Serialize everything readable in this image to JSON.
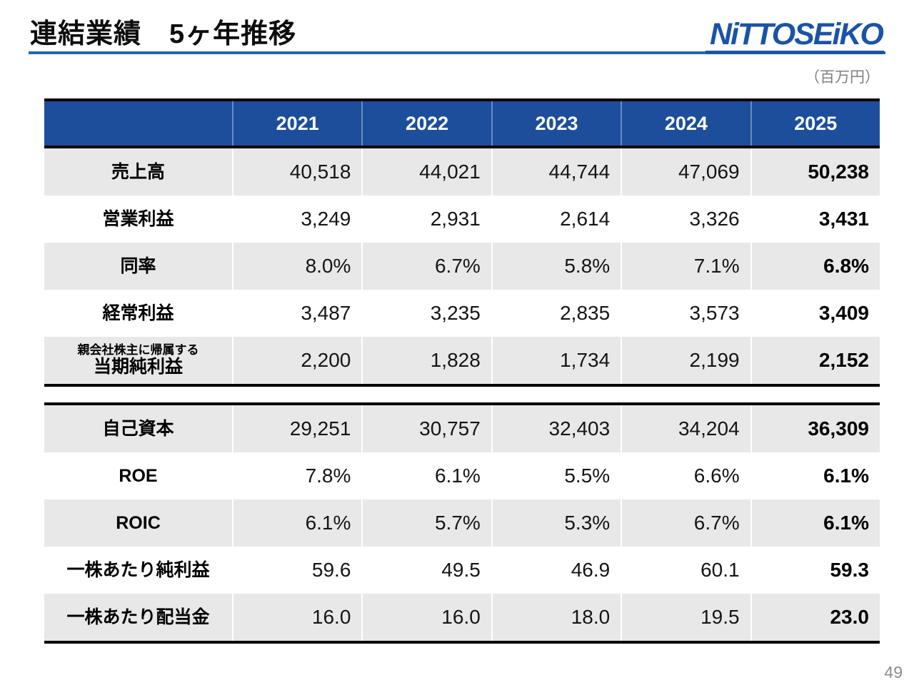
{
  "slide": {
    "title": "連結業績　5ヶ年推移",
    "unit_note": "（百万円）",
    "page_number": "49"
  },
  "logo": {
    "text": "NiTTOSEiKO"
  },
  "colors": {
    "header_blue": "#1C4E9B",
    "logo_blue": "#1B54A5",
    "rule_blue": "#2A66A5",
    "row_gray": "#E8E8E8",
    "muted_text": "#7F7F7F",
    "page_num_gray": "#8C8C8C"
  },
  "table": {
    "years": [
      "2021",
      "2022",
      "2023",
      "2024",
      "2025"
    ],
    "sections": [
      {
        "rows": [
          {
            "label": "売上高",
            "values": [
              "40,518",
              "44,021",
              "44,744",
              "47,069",
              "50,238"
            ]
          },
          {
            "label": "営業利益",
            "values": [
              "3,249",
              "2,931",
              "2,614",
              "3,326",
              "3,431"
            ]
          },
          {
            "label": "同率",
            "values": [
              "8.0%",
              "6.7%",
              "5.8%",
              "7.1%",
              "6.8%"
            ]
          },
          {
            "label": "経常利益",
            "values": [
              "3,487",
              "3,235",
              "2,835",
              "3,573",
              "3,409"
            ]
          },
          {
            "label": "当期純利益",
            "note": "親会社株主に帰属する",
            "values": [
              "2,200",
              "1,828",
              "1,734",
              "2,199",
              "2,152"
            ]
          }
        ]
      },
      {
        "rows": [
          {
            "label": "自己資本",
            "values": [
              "29,251",
              "30,757",
              "32,403",
              "34,204",
              "36,309"
            ]
          },
          {
            "label": "ROE",
            "values": [
              "7.8%",
              "6.1%",
              "5.5%",
              "6.6%",
              "6.1%"
            ]
          },
          {
            "label": "ROIC",
            "values": [
              "6.1%",
              "5.7%",
              "5.3%",
              "6.7%",
              "6.1%"
            ]
          },
          {
            "label": "一株あたり純利益",
            "values": [
              "59.6",
              "49.5",
              "46.9",
              "60.1",
              "59.3"
            ]
          },
          {
            "label": "一株あたり配当金",
            "values": [
              "16.0",
              "16.0",
              "18.0",
              "19.5",
              "23.0"
            ]
          }
        ]
      }
    ]
  }
}
